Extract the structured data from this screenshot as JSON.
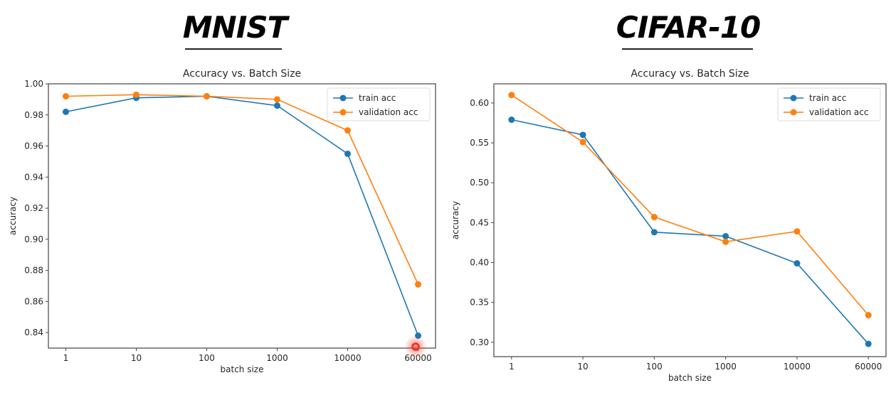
{
  "headings": [
    "MNIST",
    "CIFAR-10"
  ],
  "colors": {
    "train": "#1f77b4",
    "validation": "#ff7f0e",
    "cursor": "#ff2a1a"
  },
  "chart_data": [
    {
      "type": "line",
      "dataset": "MNIST",
      "title": "Accuracy vs. Batch Size",
      "xlabel": "batch size",
      "ylabel": "accuracy",
      "categories": [
        "1",
        "10",
        "100",
        "1000",
        "10000",
        "60000"
      ],
      "ylim": [
        0.83,
        1.0
      ],
      "yticks": [
        "0.84",
        "0.86",
        "0.88",
        "0.90",
        "0.92",
        "0.94",
        "0.96",
        "0.98",
        "1.00"
      ],
      "ytick_values": [
        0.84,
        0.86,
        0.88,
        0.9,
        0.92,
        0.94,
        0.96,
        0.98,
        1.0
      ],
      "legend_position": "top-right",
      "grid": false,
      "series": [
        {
          "name": "train acc",
          "values": [
            0.982,
            0.991,
            0.992,
            0.986,
            0.955,
            0.838
          ]
        },
        {
          "name": "validation acc",
          "values": [
            0.992,
            0.993,
            0.992,
            0.99,
            0.97,
            0.871
          ]
        }
      ]
    },
    {
      "type": "line",
      "dataset": "CIFAR-10",
      "title": "Accuracy vs. Batch Size",
      "xlabel": "batch size",
      "ylabel": "accuracy",
      "categories": [
        "1",
        "10",
        "100",
        "1000",
        "10000",
        "60000"
      ],
      "ylim": [
        0.282,
        0.624
      ],
      "yticks": [
        "0.30",
        "0.35",
        "0.40",
        "0.45",
        "0.50",
        "0.55",
        "0.60"
      ],
      "ytick_values": [
        0.3,
        0.35,
        0.4,
        0.45,
        0.5,
        0.55,
        0.6
      ],
      "legend_position": "top-right",
      "grid": false,
      "series": [
        {
          "name": "train acc",
          "values": [
            0.579,
            0.56,
            0.438,
            0.433,
            0.399,
            0.298
          ]
        },
        {
          "name": "validation acc",
          "values": [
            0.61,
            0.551,
            0.457,
            0.426,
            0.439,
            0.334
          ]
        }
      ]
    }
  ]
}
